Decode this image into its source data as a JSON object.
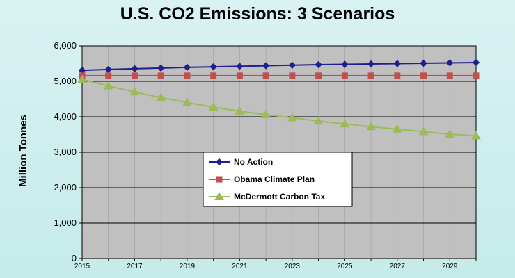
{
  "chart_data": {
    "type": "line",
    "title": "U.S. CO2 Emissions: 3 Scenarios",
    "ylabel": "Million Tonnes",
    "xlabel": "",
    "xlim": [
      2015,
      2030
    ],
    "ylim": [
      0,
      6000
    ],
    "y_ticks": [
      "0",
      "1,000",
      "2,000",
      "3,000",
      "4,000",
      "5,000",
      "6,000"
    ],
    "x_ticks": [
      "2015",
      "2017",
      "2019",
      "2021",
      "2023",
      "2025",
      "2027",
      "2029"
    ],
    "grid": "horizontal",
    "legend": "center",
    "x": [
      2015,
      2016,
      2017,
      2018,
      2019,
      2020,
      2021,
      2022,
      2023,
      2024,
      2025,
      2026,
      2027,
      2028,
      2029,
      2030
    ],
    "series": [
      {
        "name": "No Action",
        "color": "#1f1f8f",
        "marker": "diamond",
        "values": [
          5310,
          5335,
          5355,
          5375,
          5395,
          5410,
          5425,
          5440,
          5455,
          5470,
          5480,
          5490,
          5500,
          5510,
          5520,
          5530
        ]
      },
      {
        "name": "Obama Climate Plan",
        "color": "#c0504d",
        "marker": "square",
        "values": [
          5160,
          5160,
          5160,
          5160,
          5160,
          5160,
          5160,
          5160,
          5160,
          5160,
          5160,
          5160,
          5160,
          5160,
          5160,
          5160
        ]
      },
      {
        "name": "McDermott Carbon Tax",
        "color": "#9bbb59",
        "marker": "triangle",
        "values": [
          5050,
          4870,
          4700,
          4540,
          4400,
          4270,
          4160,
          4060,
          3970,
          3880,
          3800,
          3720,
          3650,
          3580,
          3510,
          3460
        ]
      }
    ]
  }
}
